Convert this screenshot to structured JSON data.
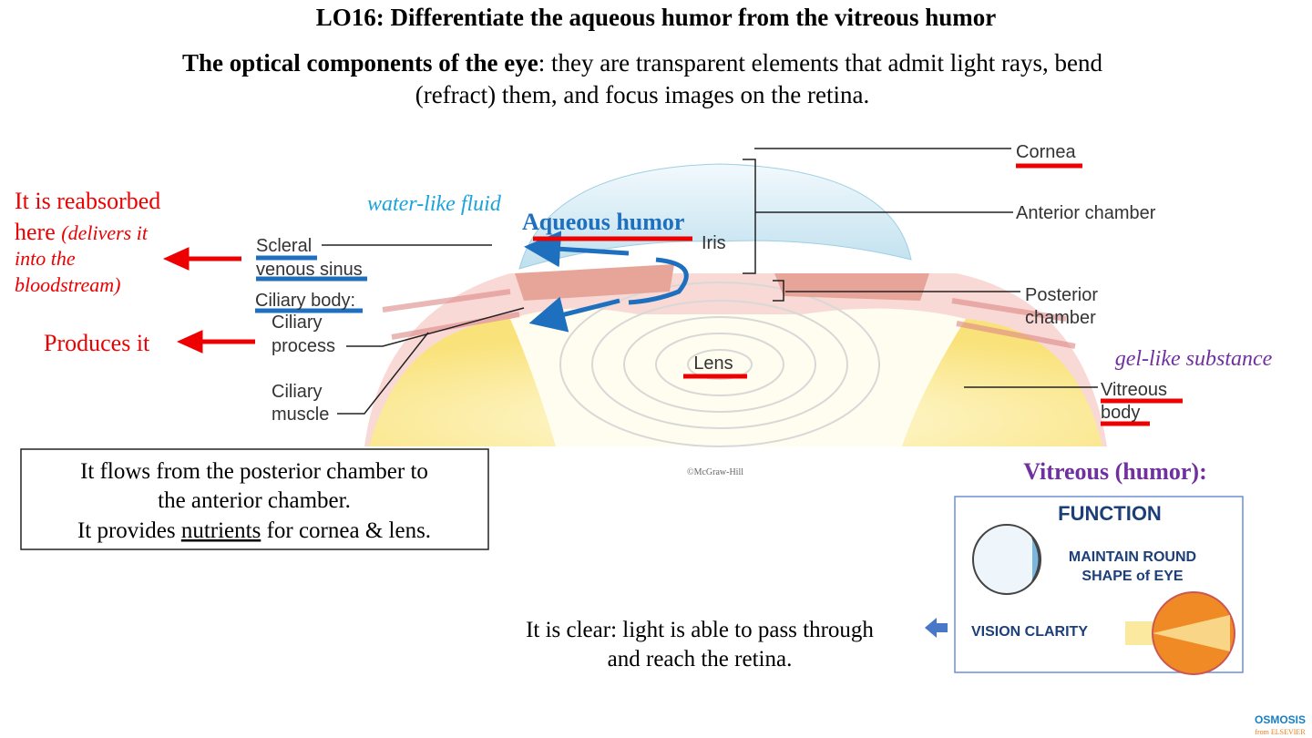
{
  "title": "LO16: Differentiate the aqueous humor from the vitreous humor",
  "intro": {
    "term": "The optical components of the eye",
    "definition": [
      ": they are transparent elements that admit light rays, bend",
      "(refract) them, and focus images on the retina."
    ]
  },
  "diagram": {
    "labels": {
      "cornea": "Cornea",
      "anterior_chamber": "Anterior chamber",
      "iris": "Iris",
      "posterior_chamber": [
        "Posterior",
        "chamber"
      ],
      "lens": "Lens",
      "vitreous_body": [
        "Vitreous",
        "body"
      ],
      "scleral_venous_sinus": [
        "Scleral",
        "venous sinus"
      ],
      "ciliary_body": "Ciliary body:",
      "ciliary_process": [
        "Ciliary",
        "process"
      ],
      "ciliary_muscle": [
        "Ciliary",
        "muscle"
      ]
    },
    "credit": "©McGraw-Hill"
  },
  "annotations": {
    "water_like": "water-like fluid",
    "aqueous_humor": "Aqueous humor",
    "gel_like": "gel-like substance",
    "reabsorbed": {
      "lines": [
        "It is reabsorbed",
        "here "
      ],
      "note": [
        "(delivers it",
        "into the",
        "bloodstream)"
      ]
    },
    "produces": "Produces it"
  },
  "aqueous_box": {
    "line1": "It flows from the posterior chamber to",
    "line2": "the anterior chamber.",
    "line3": [
      "It provides ",
      "nutrients",
      " for cornea & lens."
    ]
  },
  "vitreous": {
    "heading": "Vitreous (humor):",
    "function_card": {
      "title": "FUNCTION",
      "item1": [
        "MAINTAIN ROUND",
        "SHAPE of EYE"
      ],
      "item2": "VISION CLARITY"
    },
    "clarity": [
      "It is clear: light is able to pass through",
      "and reach the retina."
    ]
  },
  "logo": {
    "name": "OSMOSIS",
    "sub": "from ELSEVIER"
  }
}
